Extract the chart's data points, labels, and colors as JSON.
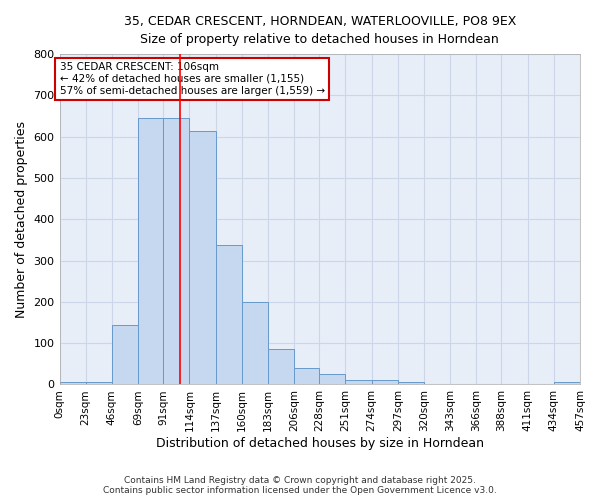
{
  "title_line1": "35, CEDAR CRESCENT, HORNDEAN, WATERLOOVILLE, PO8 9EX",
  "title_line2": "Size of property relative to detached houses in Horndean",
  "xlabel": "Distribution of detached houses by size in Horndean",
  "ylabel": "Number of detached properties",
  "bin_edges": [
    0,
    23,
    46,
    69,
    91,
    114,
    137,
    160,
    183,
    206,
    228,
    251,
    274,
    297,
    320,
    343,
    366,
    388,
    411,
    434,
    457
  ],
  "bin_labels": [
    "0sqm",
    "23sqm",
    "46sqm",
    "69sqm",
    "91sqm",
    "114sqm",
    "137sqm",
    "160sqm",
    "183sqm",
    "206sqm",
    "228sqm",
    "251sqm",
    "274sqm",
    "297sqm",
    "320sqm",
    "343sqm",
    "366sqm",
    "388sqm",
    "411sqm",
    "434sqm",
    "457sqm"
  ],
  "counts": [
    5,
    5,
    145,
    645,
    645,
    615,
    338,
    200,
    85,
    40,
    26,
    10,
    12,
    5,
    0,
    0,
    0,
    0,
    0,
    5
  ],
  "bar_color": "#c5d8f0",
  "bar_edge_color": "#6699cc",
  "grid_color": "#ccd6e8",
  "plot_bg_color": "#e8eef8",
  "fig_bg_color": "#ffffff",
  "red_line_x": 106,
  "annotation_text": "35 CEDAR CRESCENT: 106sqm\n← 42% of detached houses are smaller (1,155)\n57% of semi-detached houses are larger (1,559) →",
  "annotation_box_color": "#ffffff",
  "annotation_border_color": "#cc0000",
  "ylim": [
    0,
    800
  ],
  "yticks": [
    0,
    100,
    200,
    300,
    400,
    500,
    600,
    700,
    800
  ],
  "footer_line1": "Contains HM Land Registry data © Crown copyright and database right 2025.",
  "footer_line2": "Contains public sector information licensed under the Open Government Licence v3.0."
}
